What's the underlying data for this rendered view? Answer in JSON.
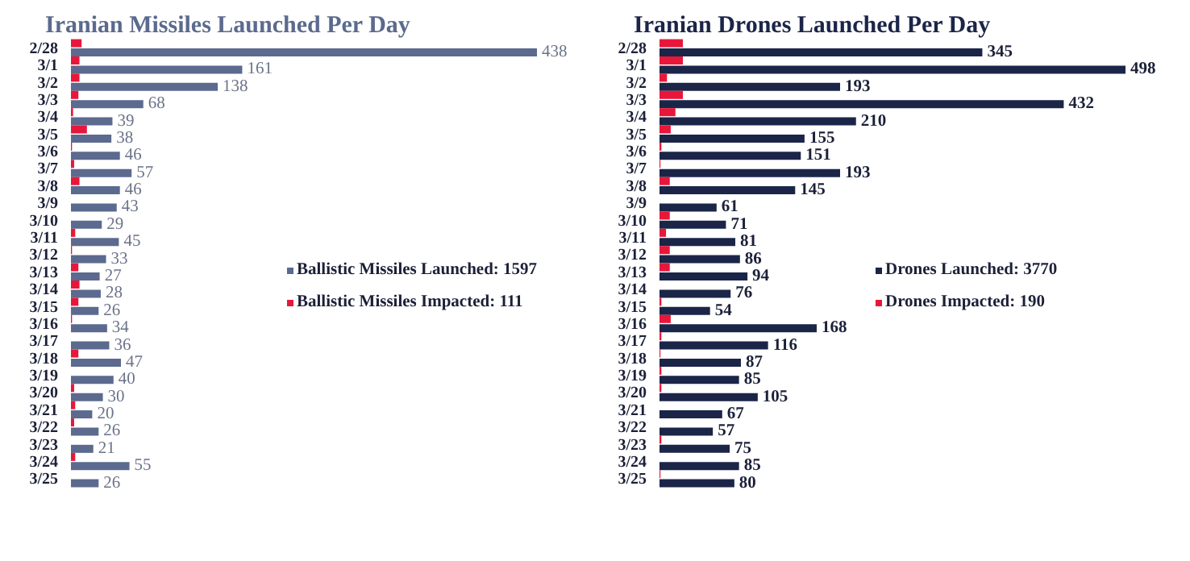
{
  "chart_data": [
    {
      "type": "bar",
      "orientation": "horizontal",
      "title": "Iranian Missiles Launched Per Day",
      "categories": [
        "2/28",
        "3/1",
        "3/2",
        "3/3",
        "3/4",
        "3/5",
        "3/6",
        "3/7",
        "3/8",
        "3/9",
        "3/10",
        "3/11",
        "3/12",
        "3/13",
        "3/14",
        "3/15",
        "3/16",
        "3/17",
        "3/18",
        "3/19",
        "3/20",
        "3/21",
        "3/22",
        "3/23",
        "3/24",
        "3/25"
      ],
      "legend": "right",
      "series": [
        {
          "name": "Ballistic Missiles Launched: 1597",
          "color": "#5b6a8e",
          "values": [
            438,
            161,
            138,
            68,
            39,
            38,
            46,
            57,
            46,
            43,
            29,
            45,
            33,
            27,
            28,
            26,
            34,
            36,
            47,
            40,
            30,
            20,
            26,
            21,
            55,
            26
          ],
          "value_labels": [
            "438",
            "161",
            "138",
            "68",
            "39",
            "38",
            "46",
            "57",
            "46",
            "43",
            "29",
            "45",
            "33",
            "27",
            "28",
            "26",
            "34",
            "36",
            "47",
            "40",
            "30",
            "20",
            "26",
            "21",
            "55",
            "26"
          ]
        },
        {
          "name": "Ballistic Missiles Impacted: 111",
          "color": "#e8173a",
          "values": [
            10,
            8,
            8,
            7,
            2,
            15,
            1,
            3,
            8,
            0,
            0,
            4,
            1,
            7,
            8,
            7,
            1,
            0,
            7,
            0,
            3,
            4,
            3,
            0,
            4,
            0
          ]
        }
      ]
    },
    {
      "type": "bar",
      "orientation": "horizontal",
      "title": "Iranian Drones Launched Per Day",
      "categories": [
        "2/28",
        "3/1",
        "3/2",
        "3/3",
        "3/4",
        "3/5",
        "3/6",
        "3/7",
        "3/8",
        "3/9",
        "3/10",
        "3/11",
        "3/12",
        "3/13",
        "3/14",
        "3/15",
        "3/16",
        "3/17",
        "3/18",
        "3/19",
        "3/20",
        "3/21",
        "3/22",
        "3/23",
        "3/24",
        "3/25"
      ],
      "legend": "right",
      "series": [
        {
          "name": "Drones Launched: 3770",
          "color": "#1b2548",
          "values": [
            345,
            498,
            193,
            432,
            210,
            155,
            151,
            193,
            145,
            61,
            71,
            81,
            86,
            94,
            76,
            54,
            168,
            116,
            87,
            85,
            105,
            67,
            57,
            75,
            85,
            80
          ],
          "value_labels": [
            "345",
            "498",
            "193",
            "432",
            "210",
            "155",
            "151",
            "193",
            "145",
            "61",
            "71",
            "81",
            "86",
            "94",
            "76",
            "54",
            "168",
            "116",
            "87",
            "85",
            "105",
            "67",
            "57",
            "75",
            "85",
            "80"
          ]
        },
        {
          "name": "Drones Impacted: 190",
          "color": "#e8173a",
          "values": [
            25,
            25,
            8,
            25,
            17,
            12,
            2,
            1,
            11,
            0,
            11,
            7,
            11,
            11,
            0,
            2,
            12,
            2,
            1,
            2,
            2,
            0,
            0,
            2,
            0,
            1
          ]
        }
      ]
    }
  ]
}
